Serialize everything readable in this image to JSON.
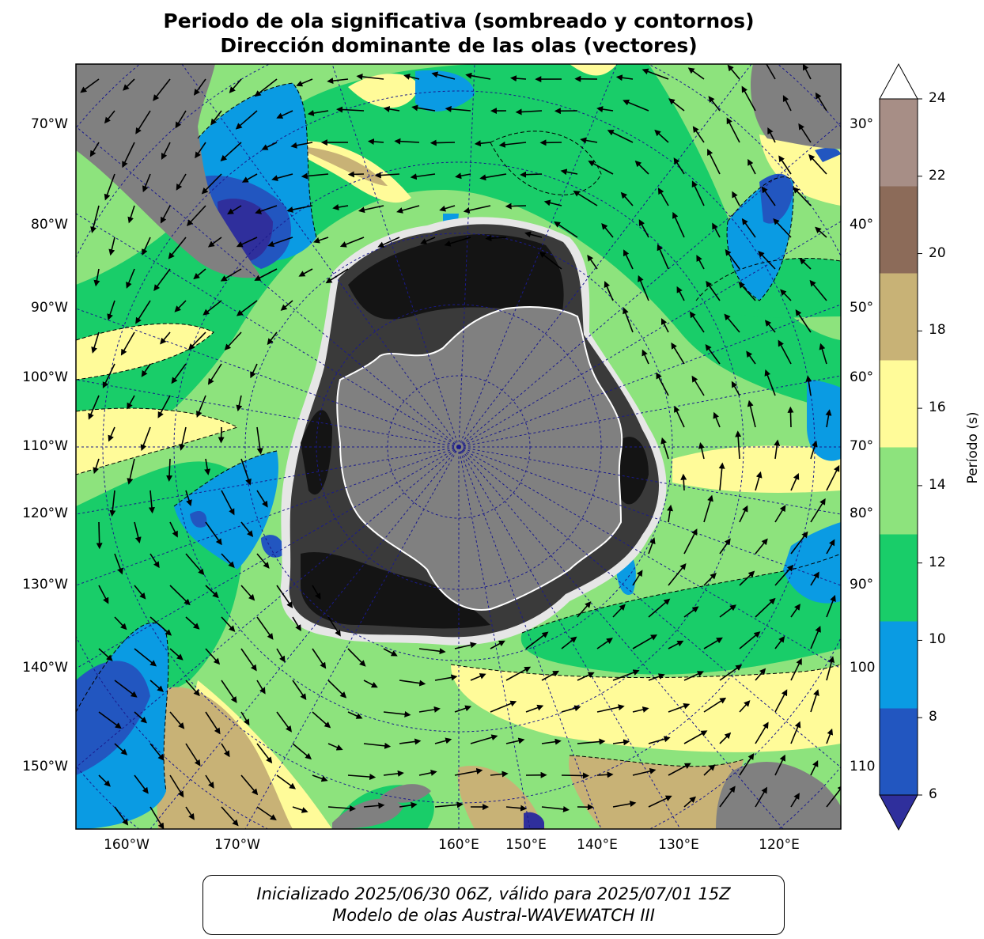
{
  "title_line1": "Periodo de ola significativa (sombreado y contornos)",
  "title_line2": "Dirección dominante de las olas (vectores)",
  "left_labels": [
    "70°W",
    "80°W",
    "90°W",
    "100°W",
    "110°W",
    "120°W",
    "130°W",
    "140°W",
    "150°W"
  ],
  "right_labels": [
    "30°",
    "40°",
    "50°",
    "60°",
    "70°",
    "80°",
    "90°",
    "100",
    "110"
  ],
  "bottom_labels": [
    "160°W",
    "170°W",
    "160°E",
    "150°E",
    "140°E",
    "130°E",
    "120°E"
  ],
  "colorbar": {
    "label": "Período (s)",
    "ticks": [
      "6",
      "8",
      "10",
      "12",
      "14",
      "16",
      "18",
      "20",
      "22",
      "24"
    ],
    "colors": [
      "#2f2f9c",
      "#2256c0",
      "#0a9be3",
      "#19cd69",
      "#8de37d",
      "#fffb99",
      "#c8b276",
      "#8c6b59",
      "#a78e86",
      "#e1d8d8"
    ],
    "extend": "both"
  },
  "map_colors": {
    "land": "#808080",
    "ice_dark": "#141414",
    "ice_mid": "#3a3a3a",
    "graticule": "#1a1a8c"
  },
  "footer_line1": "Inicializado 2025/06/30 06Z, válido para 2025/07/01 15Z",
  "footer_line2": "Modelo de olas Austral-WAVEWATCH III"
}
